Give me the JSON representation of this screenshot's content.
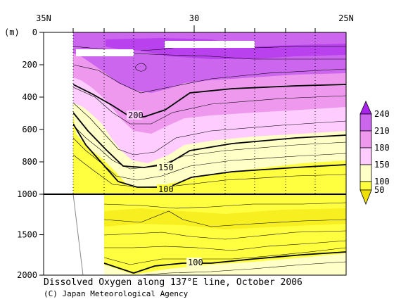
{
  "chart_data": {
    "type": "contour",
    "title": "Dissolved Oxygen along 137°E line, October 2006",
    "y_unit_label": "(m)",
    "x_tick_labels": [
      "35N",
      "30",
      "25N"
    ],
    "y_ticks_upper": [
      0,
      200,
      400,
      600,
      800,
      1000
    ],
    "y_ticks_lower": [
      1000,
      1500,
      2000
    ],
    "ylim": [
      2000,
      0
    ],
    "contour_labels": [
      {
        "text": "200",
        "depth": 500
      },
      {
        "text": "150",
        "depth": 830
      },
      {
        "text": "100",
        "depth": 960
      },
      {
        "text": "100",
        "depth": 1850
      }
    ],
    "colorbar": {
      "levels": [
        50,
        100,
        150,
        180,
        210,
        240
      ],
      "labels": [
        "240",
        "210",
        "180",
        "150",
        "100",
        "50"
      ],
      "colors": {
        "below_50": "#f0e000",
        "50_100": "#ffff40",
        "100_150": "#ffffc8",
        "150_180": "#ffccff",
        "180_210": "#ee99ee",
        "210_240": "#cc66ee",
        "above_240": "#aa22ee"
      }
    }
  },
  "caption": {
    "line1": "Dissolved Oxygen along 137°E line, October 2006",
    "line2": "(C) Japan Meteorological Agency"
  }
}
